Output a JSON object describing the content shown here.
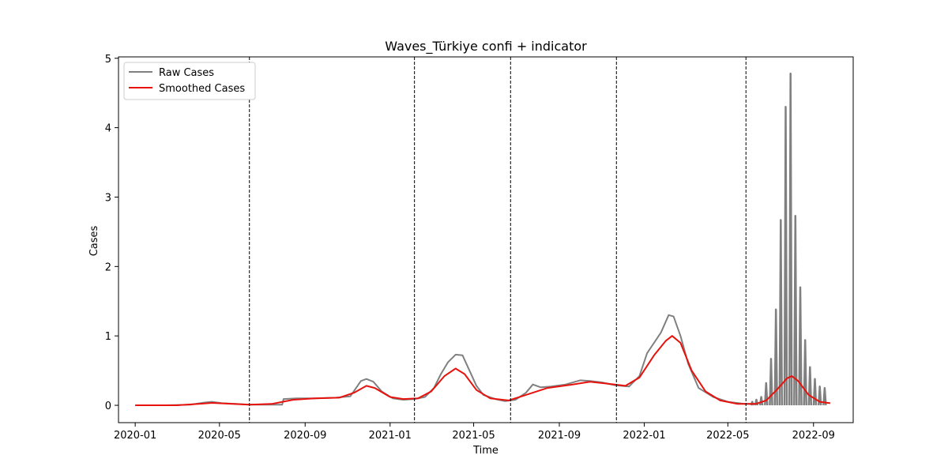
{
  "chart_data": {
    "type": "line",
    "title": "Waves_Türkiye confi + indicator",
    "xlabel": "Time",
    "ylabel": "Cases",
    "xlim": [
      "2019-12-08",
      "2022-10-28"
    ],
    "ylim": [
      -0.25,
      5.02
    ],
    "x_ticks": [
      "2020-01",
      "2020-05",
      "2020-09",
      "2021-01",
      "2021-05",
      "2021-09",
      "2022-01",
      "2022-05",
      "2022-09"
    ],
    "y_ticks": [
      0,
      1,
      2,
      3,
      4,
      5
    ],
    "grid": false,
    "legend_position": "top-left",
    "wave_boundaries": [
      "2020-06-13",
      "2021-02-05",
      "2021-06-23",
      "2021-11-22",
      "2022-05-27"
    ],
    "series": [
      {
        "name": "Raw Cases",
        "color": "#808080",
        "points": [
          [
            "2020-01-01",
            0.0
          ],
          [
            "2020-02-15",
            0.0
          ],
          [
            "2020-03-20",
            0.01
          ],
          [
            "2020-04-10",
            0.04
          ],
          [
            "2020-04-20",
            0.05
          ],
          [
            "2020-05-05",
            0.03
          ],
          [
            "2020-05-25",
            0.02
          ],
          [
            "2020-06-13",
            0.01
          ],
          [
            "2020-07-01",
            0.01
          ],
          [
            "2020-07-30",
            0.01
          ],
          [
            "2020-08-01",
            0.09
          ],
          [
            "2020-08-20",
            0.1
          ],
          [
            "2020-09-15",
            0.1
          ],
          [
            "2020-10-15",
            0.11
          ],
          [
            "2020-11-05",
            0.13
          ],
          [
            "2020-11-20",
            0.35
          ],
          [
            "2020-11-28",
            0.38
          ],
          [
            "2020-12-08",
            0.34
          ],
          [
            "2020-12-20",
            0.2
          ],
          [
            "2021-01-05",
            0.1
          ],
          [
            "2021-01-20",
            0.08
          ],
          [
            "2021-02-05",
            0.09
          ],
          [
            "2021-02-20",
            0.12
          ],
          [
            "2021-03-05",
            0.25
          ],
          [
            "2021-03-15",
            0.45
          ],
          [
            "2021-03-25",
            0.62
          ],
          [
            "2021-04-05",
            0.73
          ],
          [
            "2021-04-15",
            0.72
          ],
          [
            "2021-04-25",
            0.5
          ],
          [
            "2021-05-05",
            0.28
          ],
          [
            "2021-05-15",
            0.15
          ],
          [
            "2021-06-01",
            0.09
          ],
          [
            "2021-06-15",
            0.06
          ],
          [
            "2021-06-30",
            0.08
          ],
          [
            "2021-07-15",
            0.18
          ],
          [
            "2021-07-25",
            0.3
          ],
          [
            "2021-08-05",
            0.26
          ],
          [
            "2021-08-20",
            0.27
          ],
          [
            "2021-09-10",
            0.3
          ],
          [
            "2021-10-01",
            0.36
          ],
          [
            "2021-10-15",
            0.35
          ],
          [
            "2021-11-01",
            0.33
          ],
          [
            "2021-11-20",
            0.29
          ],
          [
            "2021-12-10",
            0.27
          ],
          [
            "2021-12-25",
            0.42
          ],
          [
            "2022-01-05",
            0.75
          ],
          [
            "2022-01-15",
            0.9
          ],
          [
            "2022-01-25",
            1.05
          ],
          [
            "2022-02-05",
            1.3
          ],
          [
            "2022-02-12",
            1.28
          ],
          [
            "2022-02-22",
            1.0
          ],
          [
            "2022-03-05",
            0.6
          ],
          [
            "2022-03-20",
            0.25
          ],
          [
            "2022-04-10",
            0.12
          ],
          [
            "2022-05-01",
            0.05
          ],
          [
            "2022-05-25",
            0.02
          ],
          [
            "2022-06-10",
            0.02
          ]
        ],
        "spikes": [
          [
            "2022-06-05",
            0.05
          ],
          [
            "2022-06-11",
            0.08
          ],
          [
            "2022-06-18",
            0.12
          ],
          [
            "2022-06-25",
            0.32
          ],
          [
            "2022-07-02",
            0.67
          ],
          [
            "2022-07-09",
            1.38
          ],
          [
            "2022-07-16",
            2.67
          ],
          [
            "2022-07-23",
            4.3
          ],
          [
            "2022-07-30",
            4.78
          ],
          [
            "2022-08-06",
            2.73
          ],
          [
            "2022-08-13",
            1.7
          ],
          [
            "2022-08-20",
            0.94
          ],
          [
            "2022-08-27",
            0.55
          ],
          [
            "2022-09-03",
            0.38
          ],
          [
            "2022-09-10",
            0.27
          ],
          [
            "2022-09-17",
            0.25
          ]
        ]
      },
      {
        "name": "Smoothed Cases",
        "color": "#e8120c",
        "points": [
          [
            "2020-01-01",
            0.0
          ],
          [
            "2020-03-01",
            0.0
          ],
          [
            "2020-04-01",
            0.02
          ],
          [
            "2020-04-20",
            0.035
          ],
          [
            "2020-05-20",
            0.02
          ],
          [
            "2020-06-13",
            0.01
          ],
          [
            "2020-07-15",
            0.02
          ],
          [
            "2020-08-15",
            0.08
          ],
          [
            "2020-09-15",
            0.1
          ],
          [
            "2020-10-20",
            0.11
          ],
          [
            "2020-11-10",
            0.18
          ],
          [
            "2020-11-28",
            0.28
          ],
          [
            "2020-12-10",
            0.25
          ],
          [
            "2021-01-01",
            0.12
          ],
          [
            "2021-01-20",
            0.09
          ],
          [
            "2021-02-10",
            0.1
          ],
          [
            "2021-03-01",
            0.2
          ],
          [
            "2021-03-20",
            0.42
          ],
          [
            "2021-04-05",
            0.53
          ],
          [
            "2021-04-18",
            0.45
          ],
          [
            "2021-05-05",
            0.22
          ],
          [
            "2021-05-25",
            0.1
          ],
          [
            "2021-06-20",
            0.07
          ],
          [
            "2021-07-15",
            0.15
          ],
          [
            "2021-08-15",
            0.25
          ],
          [
            "2021-09-20",
            0.3
          ],
          [
            "2021-10-15",
            0.34
          ],
          [
            "2021-11-10",
            0.31
          ],
          [
            "2021-12-05",
            0.28
          ],
          [
            "2021-12-25",
            0.4
          ],
          [
            "2022-01-15",
            0.72
          ],
          [
            "2022-02-01",
            0.93
          ],
          [
            "2022-02-10",
            1.0
          ],
          [
            "2022-02-22",
            0.9
          ],
          [
            "2022-03-10",
            0.5
          ],
          [
            "2022-03-30",
            0.2
          ],
          [
            "2022-04-20",
            0.07
          ],
          [
            "2022-05-15",
            0.02
          ],
          [
            "2022-06-10",
            0.02
          ],
          [
            "2022-06-25",
            0.07
          ],
          [
            "2022-07-10",
            0.22
          ],
          [
            "2022-07-25",
            0.39
          ],
          [
            "2022-08-01",
            0.42
          ],
          [
            "2022-08-10",
            0.35
          ],
          [
            "2022-08-25",
            0.15
          ],
          [
            "2022-09-10",
            0.05
          ],
          [
            "2022-09-25",
            0.03
          ]
        ]
      }
    ]
  }
}
